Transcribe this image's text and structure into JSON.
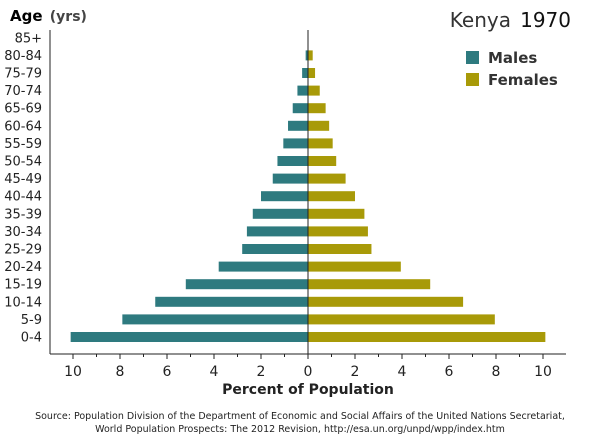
{
  "chart_data": {
    "type": "bar",
    "orientation": "horizontal-pyramid",
    "title_country": "Kenya",
    "title_year": "1970",
    "ylabel": "Age",
    "ylabel_unit": "(yrs)",
    "xlabel": "Percent of Population",
    "xlim": [
      -11,
      11
    ],
    "xticks": [
      -10,
      -8,
      -6,
      -4,
      -2,
      0,
      2,
      4,
      6,
      8,
      10
    ],
    "xtick_labels": [
      "10",
      "8",
      "6",
      "4",
      "2",
      "0",
      "2",
      "4",
      "6",
      "8",
      "10"
    ],
    "categories": [
      "0-4",
      "5-9",
      "10-14",
      "15-19",
      "20-24",
      "25-29",
      "30-34",
      "35-39",
      "40-44",
      "45-49",
      "50-54",
      "55-59",
      "60-64",
      "65-69",
      "70-74",
      "75-79",
      "80-84",
      "85+"
    ],
    "series": [
      {
        "name": "Males",
        "color": "#2e7a7f",
        "values": [
          10.1,
          7.9,
          6.5,
          5.2,
          3.8,
          2.8,
          2.6,
          2.35,
          2.0,
          1.5,
          1.3,
          1.05,
          0.85,
          0.65,
          0.45,
          0.25,
          0.1,
          0.0
        ]
      },
      {
        "name": "Females",
        "color": "#a89a08",
        "values": [
          10.1,
          7.95,
          6.6,
          5.2,
          3.95,
          2.7,
          2.55,
          2.4,
          2.0,
          1.6,
          1.2,
          1.05,
          0.9,
          0.75,
          0.5,
          0.3,
          0.2,
          0.0
        ]
      }
    ],
    "legend": "top-right",
    "grid": false
  },
  "source": {
    "line1": "Source: Population Division of the Department of Economic and Social Affairs of the United Nations Secretariat,",
    "line2": "World Population Prospects: The 2012 Revision, http://esa.un.org/unpd/wpp/index.htm"
  }
}
